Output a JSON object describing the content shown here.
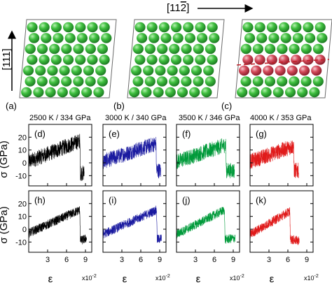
{
  "top_direction_label_pre": "[11",
  "top_direction_label_bar": "2",
  "top_direction_label_post": "]",
  "side_direction_label": "[111]",
  "atom_panels": [
    {
      "label": "(a)",
      "has_red_layer": false
    },
    {
      "label": "(b)",
      "has_red_layer": false
    },
    {
      "label": "(c)",
      "has_red_layer": true
    }
  ],
  "colors": {
    "atom_green": "#3fbf3f",
    "atom_red": "#d44a5a",
    "frame": "#6a6a6a",
    "dash_red": "#c0202a",
    "series": [
      "#000000",
      "#1a1aa0",
      "#009a3a",
      "#e01b1b"
    ]
  },
  "column_headers": [
    "2500 K / 334 GPa",
    "3000 K / 340 GPa",
    "3500 K / 346 GPa",
    "4000 K / 353 GPa"
  ],
  "y_axis_label": "σ (GPa)",
  "x_axis_label": "ε",
  "x_multiplier": "x10",
  "x_multiplier_exp": "-2",
  "y_ticks": [
    "20",
    "10",
    "0",
    "-10"
  ],
  "x_ticks": [
    "3",
    "6",
    "9"
  ],
  "chart_data": [
    {
      "type": "line",
      "panel": "(d)",
      "row": 1,
      "column": 1,
      "color": "#000000",
      "xlim": [
        0,
        10
      ],
      "ylim": [
        -18,
        30
      ],
      "trend": {
        "x": [
          0,
          8.1,
          8.2,
          8.8
        ],
        "y": [
          1,
          17,
          -8,
          -8
        ]
      }
    },
    {
      "type": "line",
      "panel": "(e)",
      "row": 1,
      "column": 2,
      "color": "#1a1aa0",
      "xlim": [
        0,
        10
      ],
      "ylim": [
        -18,
        30
      ],
      "trend": {
        "x": [
          0,
          8.4,
          8.5,
          9.2
        ],
        "y": [
          1,
          15,
          -6,
          -6
        ]
      }
    },
    {
      "type": "line",
      "panel": "(f)",
      "row": 1,
      "column": 3,
      "color": "#009a3a",
      "xlim": [
        0,
        10
      ],
      "ylim": [
        -18,
        30
      ],
      "trend": {
        "x": [
          0,
          7.8,
          7.9,
          9.2
        ],
        "y": [
          1,
          14,
          -6,
          -6
        ]
      }
    },
    {
      "type": "line",
      "panel": "(g)",
      "row": 1,
      "column": 4,
      "color": "#e01b1b",
      "xlim": [
        0,
        10
      ],
      "ylim": [
        -18,
        30
      ],
      "trend": {
        "x": [
          0,
          6.9,
          7.0,
          7.7
        ],
        "y": [
          1,
          13,
          -6,
          -6
        ]
      }
    },
    {
      "type": "line",
      "panel": "(h)",
      "row": 2,
      "column": 1,
      "color": "#000000",
      "xlim": [
        0,
        10
      ],
      "ylim": [
        -18,
        30
      ],
      "trend": {
        "x": [
          0,
          8.1,
          8.2,
          9.2
        ],
        "y": [
          -3,
          15,
          -9,
          -7
        ]
      }
    },
    {
      "type": "line",
      "panel": "(i)",
      "row": 2,
      "column": 2,
      "color": "#1a1aa0",
      "xlim": [
        0,
        10
      ],
      "ylim": [
        -18,
        30
      ],
      "trend": {
        "x": [
          0,
          8.5,
          8.6,
          9.3
        ],
        "y": [
          -4,
          15,
          -8,
          -7
        ]
      }
    },
    {
      "type": "line",
      "panel": "(j)",
      "row": 2,
      "column": 3,
      "color": "#009a3a",
      "xlim": [
        0,
        10
      ],
      "ylim": [
        -18,
        30
      ],
      "trend": {
        "x": [
          0,
          7.6,
          7.7,
          9.3
        ],
        "y": [
          -4,
          15,
          -8,
          -7
        ]
      }
    },
    {
      "type": "line",
      "panel": "(k)",
      "row": 2,
      "column": 4,
      "color": "#e01b1b",
      "xlim": [
        0,
        10
      ],
      "ylim": [
        -18,
        30
      ],
      "trend": {
        "x": [
          0,
          6.3,
          6.4,
          7.8
        ],
        "y": [
          -4,
          14,
          -8,
          -9
        ]
      }
    }
  ]
}
